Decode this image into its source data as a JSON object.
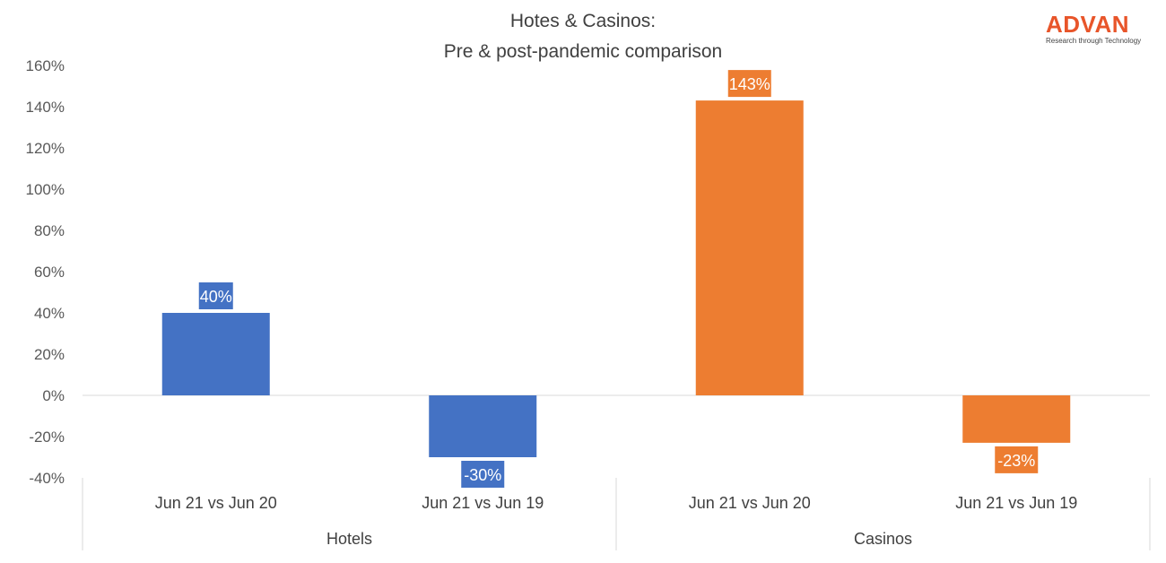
{
  "logo": {
    "name": "ADVAN",
    "tagline": "Research through Technology",
    "color": "#e8552a"
  },
  "chart_data": {
    "type": "bar",
    "title": [
      "Hotes & Casinos:",
      "Pre & post-pandemic comparison"
    ],
    "xlabel": "",
    "ylabel": "",
    "ylim": [
      -0.4,
      1.6
    ],
    "y_tick_step": 0.2,
    "y_tick_format": "percent",
    "groups": [
      {
        "label": "Hotels",
        "color": "#4472c4",
        "categories": [
          "Jun 21 vs Jun 20",
          "Jun 21 vs Jun 19"
        ],
        "values": [
          0.4,
          -0.3
        ],
        "data_labels": [
          "40%",
          "-30%"
        ]
      },
      {
        "label": "Casinos",
        "color": "#ed7d31",
        "categories": [
          "Jun 21 vs Jun 20",
          "Jun 21 vs Jun 19"
        ],
        "values": [
          1.43,
          -0.23
        ],
        "data_labels": [
          "143%",
          "-23%"
        ]
      }
    ],
    "grid": false,
    "legend": "none"
  }
}
